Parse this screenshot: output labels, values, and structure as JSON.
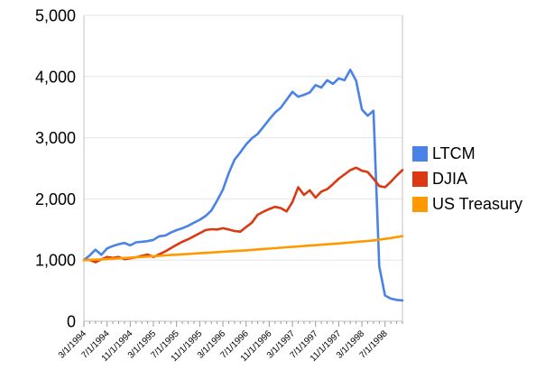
{
  "chart_data": {
    "type": "line",
    "title": "",
    "xlabel": "",
    "ylabel": "",
    "x_interval": "monthly",
    "x_range": [
      "3/1/1994",
      "10/1/1998"
    ],
    "ylim": [
      0,
      5000
    ],
    "grid": true,
    "legend_position": "right",
    "background_color": "#ffffff",
    "gridline_color": "#e6e6e6",
    "axis_line_color": "#c2c2c2",
    "tick_color": "#999999",
    "label_color": "#000000",
    "y_ticks": [
      0,
      1000,
      2000,
      3000,
      4000,
      5000
    ],
    "y_tick_labels": [
      "0",
      "1,000",
      "2,000",
      "3,000",
      "4,000",
      "5,000"
    ],
    "x_tick_labels": [
      "3/1/1994",
      "7/1/1994",
      "11/1/1994",
      "3/1/1995",
      "7/1/1995",
      "11/1/1995",
      "3/1/1996",
      "7/1/1996",
      "11/1/1996",
      "3/1/1997",
      "7/1/1997",
      "11/1/1997",
      "3/1/1998",
      "7/1/1998"
    ],
    "x_label_every_n_points": 4,
    "series": [
      {
        "name": "LTCM",
        "color": "#4a82e8",
        "values": [
          1000,
          1075,
          1170,
          1085,
          1190,
          1230,
          1260,
          1280,
          1240,
          1290,
          1300,
          1310,
          1330,
          1390,
          1400,
          1450,
          1490,
          1520,
          1560,
          1610,
          1660,
          1720,
          1810,
          1970,
          2150,
          2420,
          2640,
          2760,
          2890,
          2990,
          3060,
          3180,
          3300,
          3410,
          3490,
          3620,
          3750,
          3670,
          3700,
          3740,
          3860,
          3820,
          3940,
          3880,
          3970,
          3940,
          4110,
          3930,
          3460,
          3360,
          3440,
          900,
          420,
          370,
          350,
          340
        ]
      },
      {
        "name": "DJIA",
        "color": "#dc3912",
        "values": [
          1000,
          1005,
          965,
          1010,
          1050,
          1035,
          1050,
          1015,
          1030,
          1045,
          1070,
          1090,
          1050,
          1095,
          1140,
          1195,
          1250,
          1300,
          1340,
          1390,
          1440,
          1490,
          1505,
          1500,
          1520,
          1500,
          1475,
          1465,
          1540,
          1610,
          1740,
          1790,
          1835,
          1870,
          1850,
          1795,
          1950,
          2190,
          2065,
          2140,
          2020,
          2120,
          2160,
          2240,
          2330,
          2400,
          2470,
          2510,
          2460,
          2440,
          2330,
          2210,
          2190,
          2280,
          2380,
          2470
        ]
      },
      {
        "name": "US Treasury",
        "color": "#ff9900",
        "values": [
          1000,
          1004,
          1008,
          1012,
          1016,
          1022,
          1028,
          1034,
          1040,
          1046,
          1052,
          1058,
          1064,
          1070,
          1076,
          1082,
          1088,
          1094,
          1100,
          1106,
          1112,
          1118,
          1124,
          1130,
          1136,
          1142,
          1148,
          1154,
          1160,
          1167,
          1174,
          1181,
          1188,
          1195,
          1202,
          1209,
          1216,
          1223,
          1230,
          1237,
          1244,
          1251,
          1258,
          1265,
          1272,
          1280,
          1288,
          1296,
          1304,
          1312,
          1322,
          1334,
          1346,
          1360,
          1376,
          1392
        ]
      }
    ]
  },
  "legend": {
    "items": [
      {
        "label": "LTCM",
        "color": "#4a82e8"
      },
      {
        "label": "DJIA",
        "color": "#dc3912"
      },
      {
        "label": "US Treasury",
        "color": "#ff9900"
      }
    ]
  }
}
